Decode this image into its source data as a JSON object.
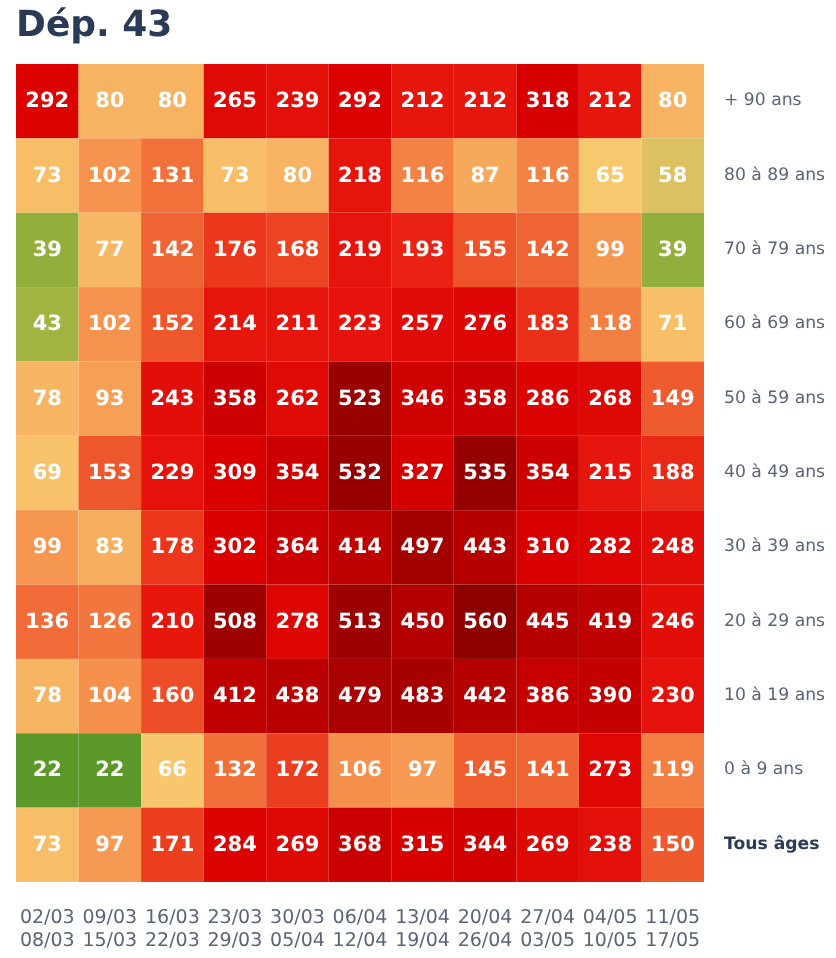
{
  "chart_data": {
    "type": "heatmap",
    "title": "Dép. 43",
    "categories": [
      "02/03\n08/03",
      "09/03\n15/03",
      "16/03\n22/03",
      "23/03\n29/03",
      "30/03\n05/04",
      "06/04\n12/04",
      "13/04\n19/04",
      "20/04\n26/04",
      "27/04\n03/05",
      "04/05\n10/05",
      "11/05\n17/05"
    ],
    "y_categories": [
      "+ 90 ans",
      "80 à 89 ans",
      "70 à 79 ans",
      "60 à 69 ans",
      "50 à 59 ans",
      "40 à 49 ans",
      "30 à 39 ans",
      "20 à 29 ans",
      "10 à 19 ans",
      "0 à 9 ans",
      "Tous âges"
    ],
    "cells": [
      [
        292,
        80,
        80,
        265,
        239,
        292,
        212,
        212,
        318,
        212,
        80
      ],
      [
        73,
        102,
        131,
        73,
        80,
        218,
        116,
        87,
        116,
        65,
        58
      ],
      [
        39,
        77,
        142,
        176,
        168,
        219,
        193,
        155,
        142,
        99,
        39
      ],
      [
        43,
        102,
        152,
        214,
        211,
        223,
        257,
        276,
        183,
        118,
        71
      ],
      [
        78,
        93,
        243,
        358,
        262,
        523,
        346,
        358,
        286,
        268,
        149
      ],
      [
        69,
        153,
        229,
        309,
        354,
        532,
        327,
        535,
        354,
        215,
        188
      ],
      [
        99,
        83,
        178,
        302,
        364,
        414,
        497,
        443,
        310,
        282,
        248
      ],
      [
        136,
        126,
        210,
        508,
        278,
        513,
        450,
        560,
        445,
        419,
        246
      ],
      [
        78,
        104,
        160,
        412,
        438,
        479,
        483,
        442,
        386,
        390,
        230
      ],
      [
        22,
        22,
        66,
        132,
        172,
        106,
        97,
        145,
        141,
        273,
        119
      ],
      [
        73,
        97,
        171,
        284,
        269,
        368,
        315,
        344,
        269,
        238,
        150
      ]
    ],
    "data_labels": true
  }
}
